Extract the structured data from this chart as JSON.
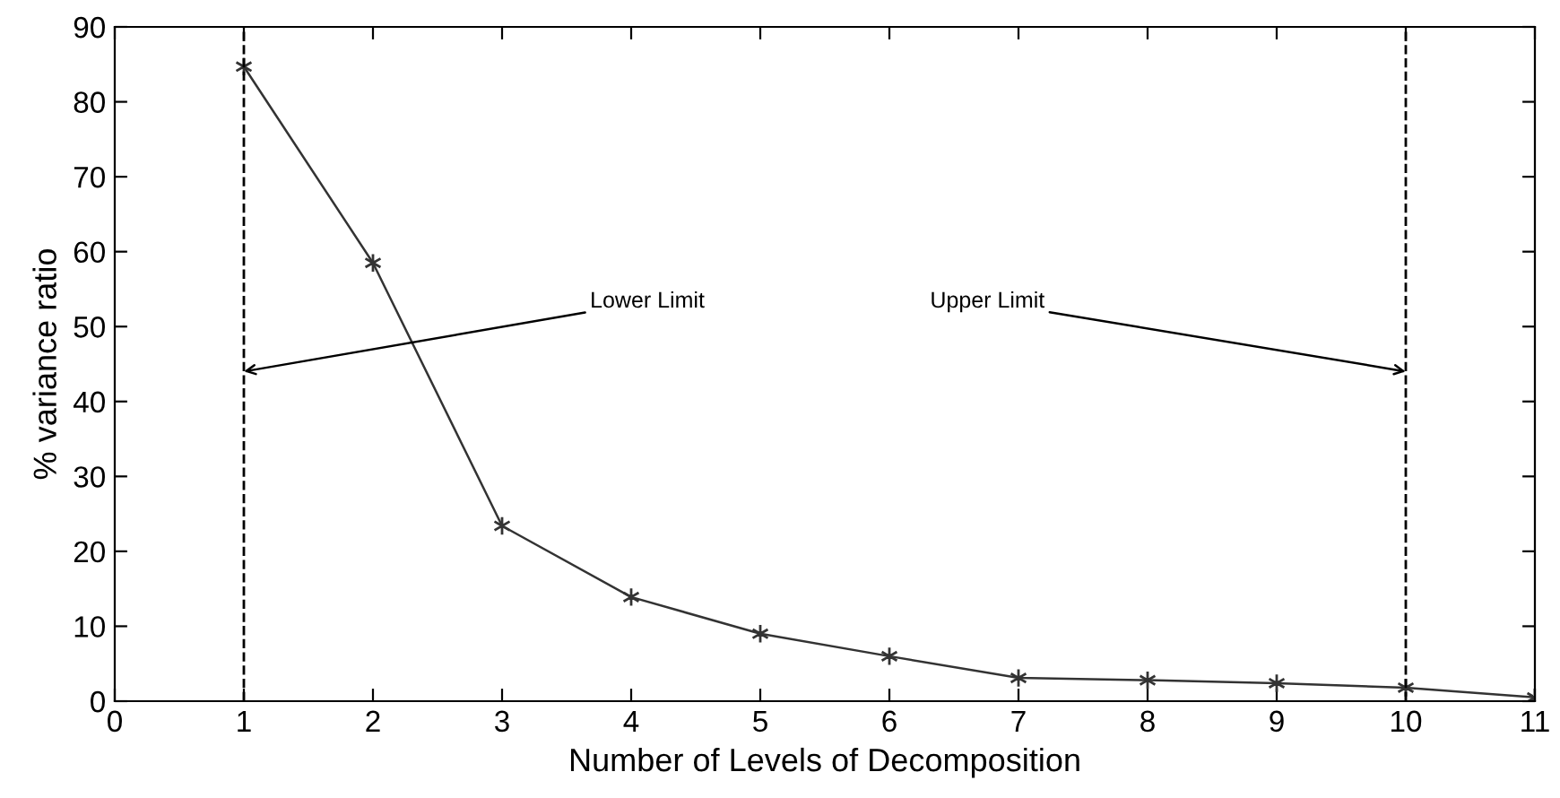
{
  "chart_data": {
    "type": "line",
    "xlabel": "Number of Levels of Decomposition",
    "ylabel": "% variance ratio",
    "x": [
      1,
      2,
      3,
      4,
      5,
      6,
      7,
      8,
      9,
      10,
      11
    ],
    "series": [
      {
        "color": "#333333",
        "values": [
          84.7,
          58.5,
          23.4,
          13.9,
          9.0,
          6.0,
          3.1,
          2.8,
          2.4,
          1.8,
          0.5
        ]
      }
    ],
    "marker": "cross",
    "line_style": "solid",
    "grid": false,
    "legend": false,
    "xlim": [
      0,
      11
    ],
    "xticks": [
      0,
      1,
      2,
      3,
      4,
      5,
      6,
      7,
      8,
      9,
      10,
      11
    ],
    "ylim": [
      0,
      90
    ],
    "yticks": [
      0,
      10,
      20,
      30,
      40,
      50,
      60,
      70,
      80,
      90
    ],
    "ref_lines": [
      {
        "axis": "x",
        "value": 1,
        "color": "#000000",
        "line_style": "dashed"
      },
      {
        "axis": "x",
        "value": 10,
        "color": "#000000",
        "line_style": "dashed"
      }
    ],
    "annotations": [
      {
        "text": "Lower Limit",
        "x": 1,
        "y": 44
      },
      {
        "text": "Upper Limit",
        "x": 10,
        "y": 44
      }
    ]
  }
}
